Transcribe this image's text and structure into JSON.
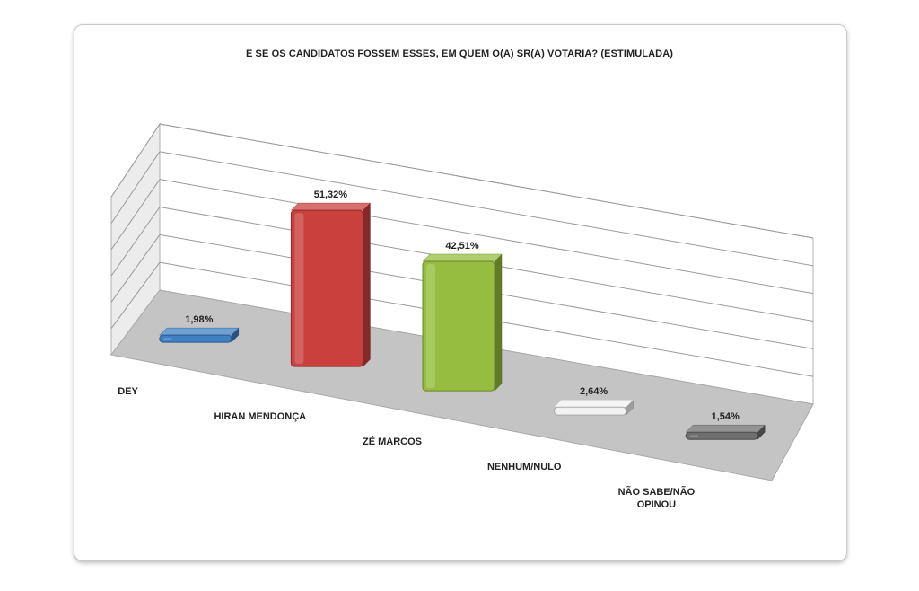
{
  "chart_data": {
    "type": "bar",
    "title": "E SE OS CANDIDATOS FOSSEM ESSES, EM QUEM O(A) SR(A) VOTARIA? (ESTIMULADA)",
    "categories": [
      "DEY",
      "HIRAN MENDONÇA",
      "ZÉ MARCOS",
      "NENHUM/NULO",
      "NÃO SABE/NÃO OPINOU"
    ],
    "category_lines": [
      [
        "DEY"
      ],
      [
        "HIRAN MENDONÇA"
      ],
      [
        "ZÉ MARCOS"
      ],
      [
        "NENHUM/NULO"
      ],
      [
        "NÃO SABE/NÃO",
        "OPINOU"
      ]
    ],
    "values": [
      1.98,
      51.32,
      42.51,
      2.64,
      1.54
    ],
    "data_labels": [
      "1,98%",
      "51,32%",
      "42,51%",
      "2,64%",
      "1,54%"
    ],
    "colors": [
      "#3f7fc4",
      "#c9403d",
      "#96bd3f",
      "#f2f2f2",
      "#6f6f6f"
    ],
    "ylim": [
      0,
      60
    ],
    "grid": true,
    "style": "3d"
  }
}
